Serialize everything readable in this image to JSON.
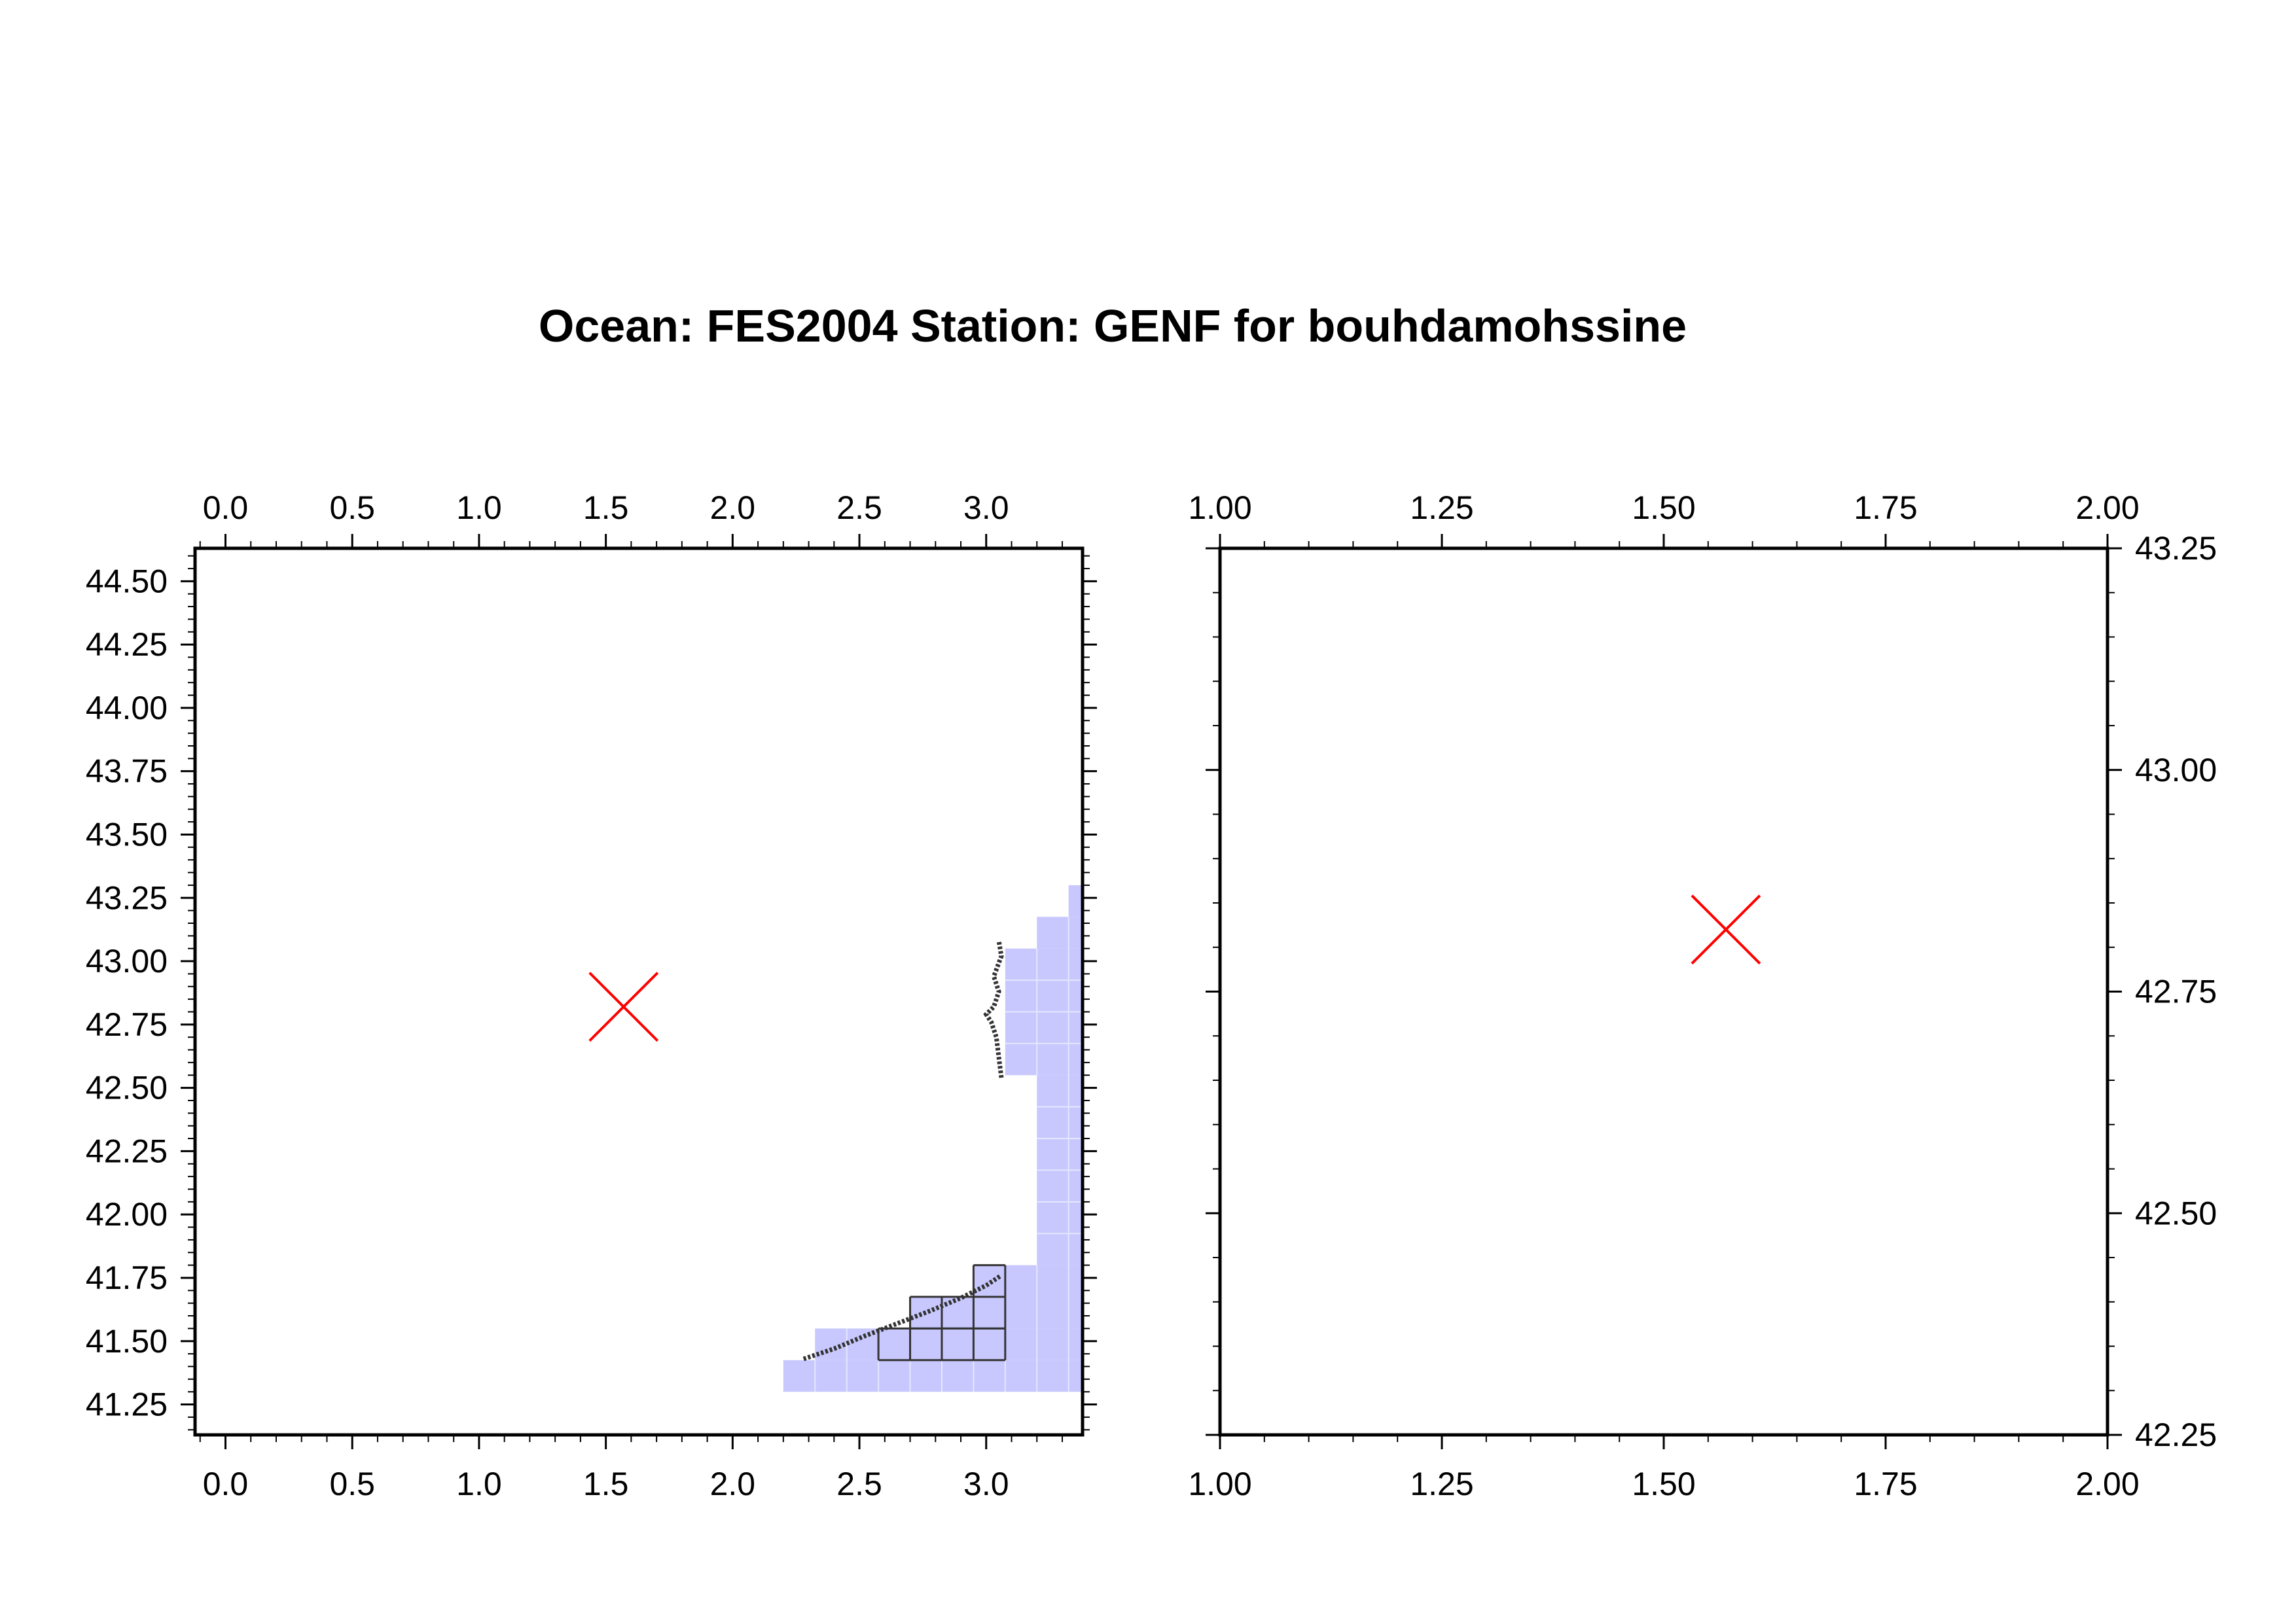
{
  "title": "Ocean: FES2004  Station: GENF  for bouhdamohssine",
  "colors": {
    "frame": "#000000",
    "marker": "#ff0000",
    "ocean_cell": "#c8c8ff",
    "ocean_grid": "#e6e6ff",
    "coastline": "#333333"
  },
  "left_map": {
    "x_range": [
      -0.12,
      3.38
    ],
    "y_range": [
      41.13,
      44.63
    ],
    "x_ticks": [
      "0.0",
      "0.5",
      "1.0",
      "1.5",
      "2.0",
      "2.5",
      "3.0"
    ],
    "y_ticks": [
      "41.25",
      "41.50",
      "41.75",
      "42.00",
      "42.25",
      "42.50",
      "42.75",
      "43.00",
      "43.25",
      "43.50",
      "43.75",
      "44.00",
      "44.25",
      "44.50"
    ],
    "station": {
      "lon": 1.57,
      "lat": 42.82
    },
    "ocean_cells": [
      {
        "x0": 2.2,
        "x1": 3.375,
        "y0": 41.3,
        "y1": 41.425
      },
      {
        "x0": 2.325,
        "x1": 3.375,
        "y0": 41.425,
        "y1": 41.55
      },
      {
        "x0": 2.7,
        "x1": 3.375,
        "y0": 41.55,
        "y1": 41.675
      },
      {
        "x0": 2.95,
        "x1": 3.375,
        "y0": 41.675,
        "y1": 41.8
      },
      {
        "x0": 3.2,
        "x1": 3.375,
        "y0": 41.8,
        "y1": 42.55
      },
      {
        "x0": 3.075,
        "x1": 3.375,
        "y0": 42.55,
        "y1": 43.05
      },
      {
        "x0": 3.2,
        "x1": 3.375,
        "y0": 43.05,
        "y1": 43.175
      },
      {
        "x0": 3.325,
        "x1": 3.375,
        "y0": 43.175,
        "y1": 43.3
      }
    ],
    "coast_cells": [
      {
        "x0": 2.575,
        "x1": 3.075,
        "y0": 41.425,
        "y1": 41.55
      },
      {
        "x0": 2.7,
        "x1": 3.075,
        "y0": 41.55,
        "y1": 41.675
      },
      {
        "x0": 2.95,
        "x1": 3.075,
        "y0": 41.675,
        "y1": 41.8
      }
    ],
    "coastline": [
      [
        [
          2.28,
          41.43
        ],
        [
          2.4,
          41.47
        ],
        [
          2.52,
          41.52
        ],
        [
          2.65,
          41.57
        ],
        [
          2.78,
          41.62
        ],
        [
          2.9,
          41.67
        ],
        [
          3.0,
          41.72
        ],
        [
          3.06,
          41.76
        ]
      ],
      [
        [
          3.06,
          42.54
        ],
        [
          3.05,
          42.62
        ],
        [
          3.04,
          42.7
        ],
        [
          3.02,
          42.76
        ],
        [
          3.0,
          42.79
        ],
        [
          3.03,
          42.82
        ],
        [
          3.05,
          42.88
        ],
        [
          3.03,
          42.94
        ],
        [
          3.06,
          43.02
        ],
        [
          3.05,
          43.08
        ]
      ]
    ]
  },
  "right_map": {
    "x_range": [
      1.0,
      2.0
    ],
    "y_range": [
      42.25,
      43.25
    ],
    "x_ticks": [
      "1.00",
      "1.25",
      "1.50",
      "1.75",
      "2.00"
    ],
    "y_ticks": [
      "42.25",
      "42.50",
      "42.75",
      "43.00",
      "43.25"
    ],
    "station": {
      "lon": 1.57,
      "lat": 42.82
    }
  }
}
